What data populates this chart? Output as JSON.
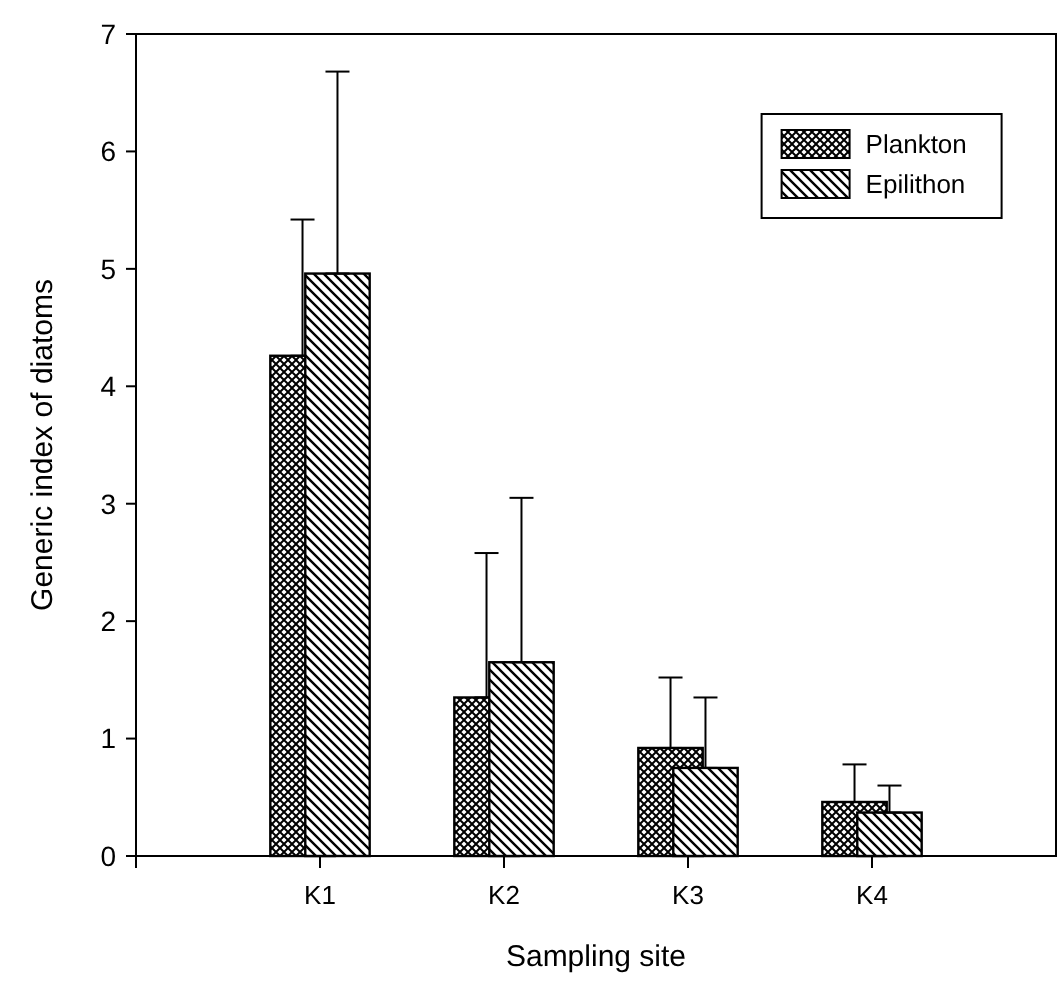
{
  "chart_data": {
    "type": "bar",
    "xlabel": "Sampling site",
    "ylabel": "Generic index of diatoms",
    "categories": [
      "K1",
      "K2",
      "K3",
      "K4"
    ],
    "series": [
      {
        "name": "Plankton",
        "color": "#000000",
        "values": [
          4.26,
          1.35,
          0.92,
          0.46
        ],
        "errors": [
          [
            4.26,
            5.42
          ],
          [
            1.35,
            2.58
          ],
          [
            0.92,
            1.52
          ],
          [
            0.46,
            0.78
          ]
        ]
      },
      {
        "name": "Epilithon",
        "color": "#000000",
        "values": [
          4.96,
          1.65,
          0.75,
          0.37
        ],
        "errors": [
          [
            4.96,
            6.68
          ],
          [
            1.65,
            3.05
          ],
          [
            0.75,
            1.35
          ],
          [
            0.37,
            0.6
          ]
        ]
      }
    ],
    "ylim": [
      0,
      7
    ],
    "yticks": [
      0,
      1,
      2,
      3,
      4,
      5,
      6,
      7
    ],
    "legend": "top right",
    "grid": false
  }
}
